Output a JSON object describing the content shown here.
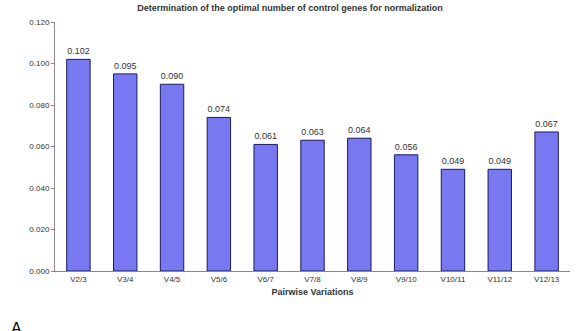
{
  "chart_data": {
    "type": "bar",
    "title": "Determination of the optimal number of control genes for normalization",
    "x_label": "Pairwise Variations",
    "categories": [
      "V2/3",
      "V3/4",
      "V4/5",
      "V5/6",
      "V6/7",
      "V7/8",
      "V8/9",
      "V9/10",
      "V10/11",
      "V11/12",
      "V12/13"
    ],
    "values": [
      0.102,
      0.095,
      0.09,
      0.074,
      0.061,
      0.063,
      0.064,
      0.056,
      0.049,
      0.049,
      0.067
    ],
    "value_labels": [
      "0.102",
      "0.095",
      "0.090",
      "0.074",
      "0.061",
      "0.063",
      "0.064",
      "0.056",
      "0.049",
      "0.049",
      "0.067"
    ],
    "data_labels": true,
    "color": "#7878f0",
    "ylim": [
      0,
      0.12
    ],
    "yticks": [
      {
        "value": 0,
        "label": "0.000"
      },
      {
        "value": 0.02,
        "label": "0.020"
      },
      {
        "value": 0.04,
        "label": "0.040"
      },
      {
        "value": 0.06,
        "label": "0.060"
      },
      {
        "value": 0.08,
        "label": "0.080"
      },
      {
        "value": 0.1,
        "label": "0.100"
      },
      {
        "value": 0.12,
        "label": "0.120"
      }
    ],
    "grid": false,
    "annotations": [
      "A"
    ]
  }
}
